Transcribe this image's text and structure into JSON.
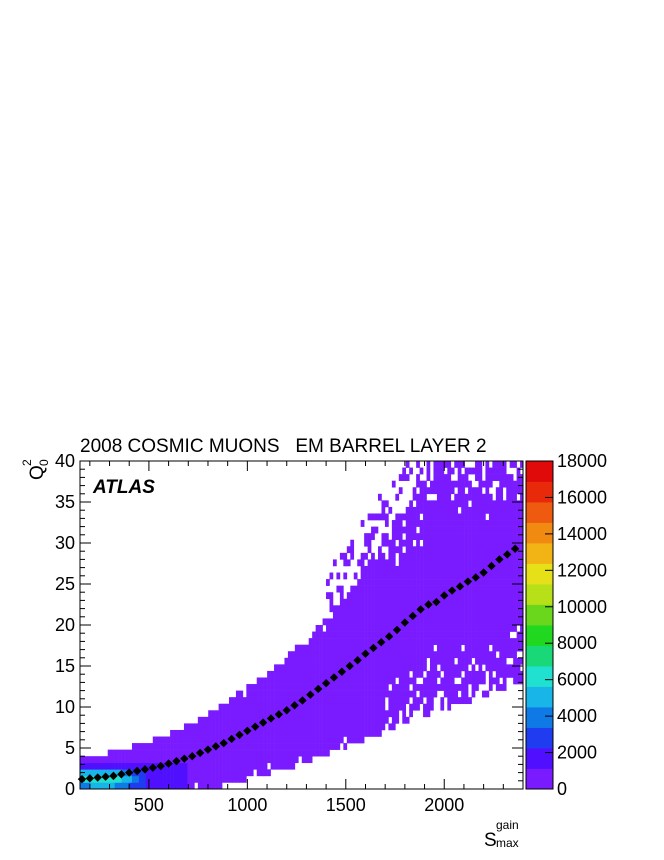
{
  "chart_data": {
    "type": "heatmap",
    "title": "2008 COSMIC MUONS   EM BARREL LAYER 2",
    "annotation": "ATLAS",
    "xlabel": {
      "main": "S",
      "sup": "gain",
      "sub": "max"
    },
    "ylabel": {
      "main": "Q",
      "sup": "2",
      "sub": "0"
    },
    "xlim": [
      150,
      2400
    ],
    "ylim": [
      0,
      40
    ],
    "x_ticks": [
      500,
      1000,
      1500,
      2000
    ],
    "x_tick_labels": [
      "500",
      "1000",
      "1500",
      "2000"
    ],
    "y_ticks": [
      0,
      5,
      10,
      15,
      20,
      25,
      30,
      35,
      40
    ],
    "y_tick_labels": [
      "0",
      "5",
      "10",
      "15",
      "20",
      "25",
      "30",
      "35",
      "40"
    ],
    "colorbar": {
      "range": [
        0,
        18000
      ],
      "ticks": [
        0,
        2000,
        4000,
        6000,
        8000,
        10000,
        12000,
        14000,
        16000,
        18000
      ],
      "tick_labels": [
        "0",
        "2000",
        "4000",
        "6000",
        "8000",
        "10000",
        "12000",
        "14000",
        "16000",
        "18000"
      ],
      "colors": [
        "#7a1bff",
        "#5010ff",
        "#1f3cf0",
        "#0f7ae6",
        "#18b6e8",
        "#20e0d0",
        "#18d878",
        "#20d820",
        "#6ad61c",
        "#b8e018",
        "#e6e018",
        "#f2b414",
        "#f08a10",
        "#ee5a10",
        "#e82a0a",
        "#e00a0a"
      ]
    },
    "profile_series": {
      "name": "",
      "marker": "diamond",
      "color": "#000000",
      "x": [
        160,
        200,
        240,
        280,
        320,
        360,
        400,
        440,
        480,
        520,
        560,
        600,
        640,
        680,
        720,
        760,
        800,
        840,
        880,
        920,
        960,
        1000,
        1040,
        1080,
        1120,
        1160,
        1200,
        1240,
        1280,
        1320,
        1360,
        1400,
        1440,
        1480,
        1520,
        1560,
        1600,
        1640,
        1680,
        1720,
        1760,
        1800,
        1840,
        1880,
        1920,
        1960,
        2000,
        2040,
        2080,
        2120,
        2160,
        2200,
        2240,
        2280,
        2320,
        2360
      ],
      "y": [
        1.2,
        1.3,
        1.4,
        1.5,
        1.6,
        1.8,
        2.0,
        2.2,
        2.4,
        2.6,
        2.8,
        3.1,
        3.4,
        3.7,
        4.0,
        4.4,
        4.8,
        5.2,
        5.6,
        6.1,
        6.6,
        7.1,
        7.6,
        8.1,
        8.6,
        9.1,
        9.6,
        10.2,
        10.8,
        11.5,
        12.2,
        12.9,
        13.6,
        14.3,
        15.0,
        15.7,
        16.5,
        17.2,
        17.9,
        18.6,
        19.4,
        20.3,
        21.1,
        21.9,
        22.5,
        22.8,
        23.6,
        24.2,
        24.7,
        25.3,
        25.8,
        26.4,
        27.2,
        28.0,
        28.6,
        29.3
      ]
    },
    "density_level": "most bins in the lowest colour band (0 to 1125 counts); highest counts (about 4000 to 6000) near S below 450 and Q below 2"
  }
}
